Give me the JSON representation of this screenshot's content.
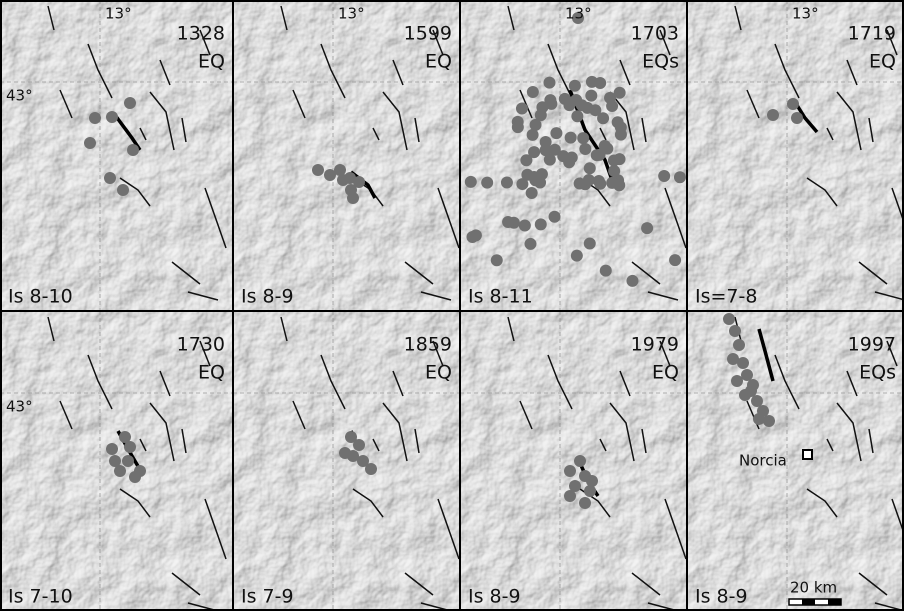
{
  "graticule": {
    "longitude": "13°",
    "latitude": "43°"
  },
  "panels": [
    {
      "year": "1328",
      "events": "EQ",
      "intensity": "Is 8-10"
    },
    {
      "year": "1599",
      "events": "EQ",
      "intensity": "Is 8-9"
    },
    {
      "year": "1703",
      "events": "EQs",
      "intensity": "Is 8-11"
    },
    {
      "year": "1719",
      "events": "EQ",
      "intensity": "Is=7-8"
    },
    {
      "year": "1730",
      "events": "EQ",
      "intensity": "Is 7-10"
    },
    {
      "year": "1859",
      "events": "EQ",
      "intensity": "Is 7-9"
    },
    {
      "year": "1979",
      "events": "EQ",
      "intensity": "Is 8-9"
    },
    {
      "year": "1997",
      "events": "EQs",
      "intensity": "Is 8-9"
    }
  ],
  "town": "Norcia",
  "scale_bar": "20 km"
}
